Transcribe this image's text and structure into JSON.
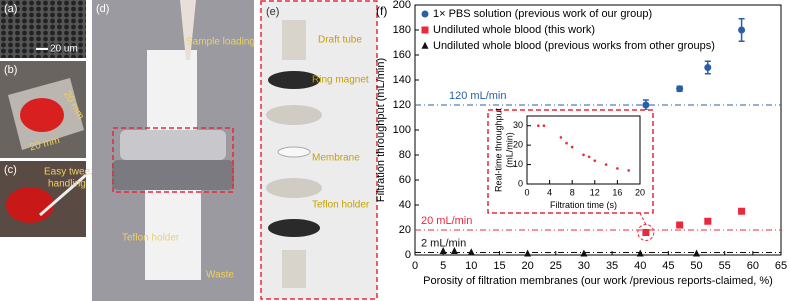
{
  "panels": {
    "a": {
      "label": "(a)",
      "scale": "20 um"
    },
    "b": {
      "label": "(b)",
      "dims": [
        "20 mm",
        "20 mm"
      ]
    },
    "c": {
      "label": "(c)",
      "note": [
        "Easy tweezer",
        "handling"
      ]
    },
    "d": {
      "label": "(d)",
      "callouts": [
        "Sample loading",
        "Teflon holder",
        "Waste"
      ]
    },
    "e": {
      "label": "(e)",
      "parts": [
        "Draft tube",
        "Ring magnet",
        "Membrane",
        "Teflon holder"
      ]
    }
  },
  "chart_data": [
    {
      "type": "scatter",
      "panel_label": "(f)",
      "x_label": "Porosity of filtration membranes (our work /previous reports-claimed, %)",
      "y_label": "Filtration throughput (mL/min)",
      "xlim": [
        0,
        65
      ],
      "xticks": [
        0,
        5,
        10,
        15,
        20,
        25,
        30,
        35,
        40,
        45,
        50,
        55,
        60,
        65
      ],
      "ylim": [
        0,
        200
      ],
      "yticks": [
        0,
        20,
        40,
        60,
        80,
        100,
        120,
        140,
        160,
        180,
        200
      ],
      "legend": "upper left",
      "series": [
        {
          "name": "1× PBS solution (previous work of our group)",
          "color": "#2a5ea8",
          "marker": "circle",
          "x": [
            41,
            47,
            52,
            58
          ],
          "values": [
            120,
            133,
            150,
            180
          ],
          "errors": [
            4,
            2,
            5,
            9
          ]
        },
        {
          "name": "Undiluted whole blood (this work)",
          "color": "#e8283c",
          "marker": "square",
          "x": [
            41,
            47,
            52,
            58
          ],
          "values": [
            18,
            24,
            27,
            35
          ]
        },
        {
          "name": "Undiluted whole blood (previous works from other groups)",
          "color": "#111111",
          "marker": "triangle",
          "x": [
            5,
            7,
            10,
            20,
            30,
            40,
            50
          ],
          "values": [
            3,
            3,
            2,
            1,
            1,
            1,
            1
          ]
        }
      ],
      "reference_lines": [
        {
          "value": 120,
          "label": "120 mL/min",
          "color": "#2a5ea8"
        },
        {
          "value": 20,
          "label": "20 mL/min",
          "color": "#e8283c"
        },
        {
          "value": 2,
          "label": "2 mL/min",
          "color": "#111111"
        }
      ]
    },
    {
      "type": "scatter",
      "x_label": "Filtration time (s)",
      "y_label": [
        "Real-time throughput",
        "(mL/min)"
      ],
      "xlim": [
        0,
        20
      ],
      "xticks": [
        0,
        4,
        8,
        12,
        16,
        20
      ],
      "ylim": [
        0,
        35
      ],
      "yticks": [
        0,
        10,
        20,
        30
      ],
      "series": [
        {
          "color": "#e8283c",
          "marker": "dot",
          "x": [
            2,
            3,
            6,
            7,
            8,
            10,
            11,
            12,
            14,
            16,
            18
          ],
          "values": [
            30,
            30,
            24,
            21,
            19,
            15,
            14,
            12,
            10,
            8,
            7
          ]
        }
      ]
    }
  ]
}
